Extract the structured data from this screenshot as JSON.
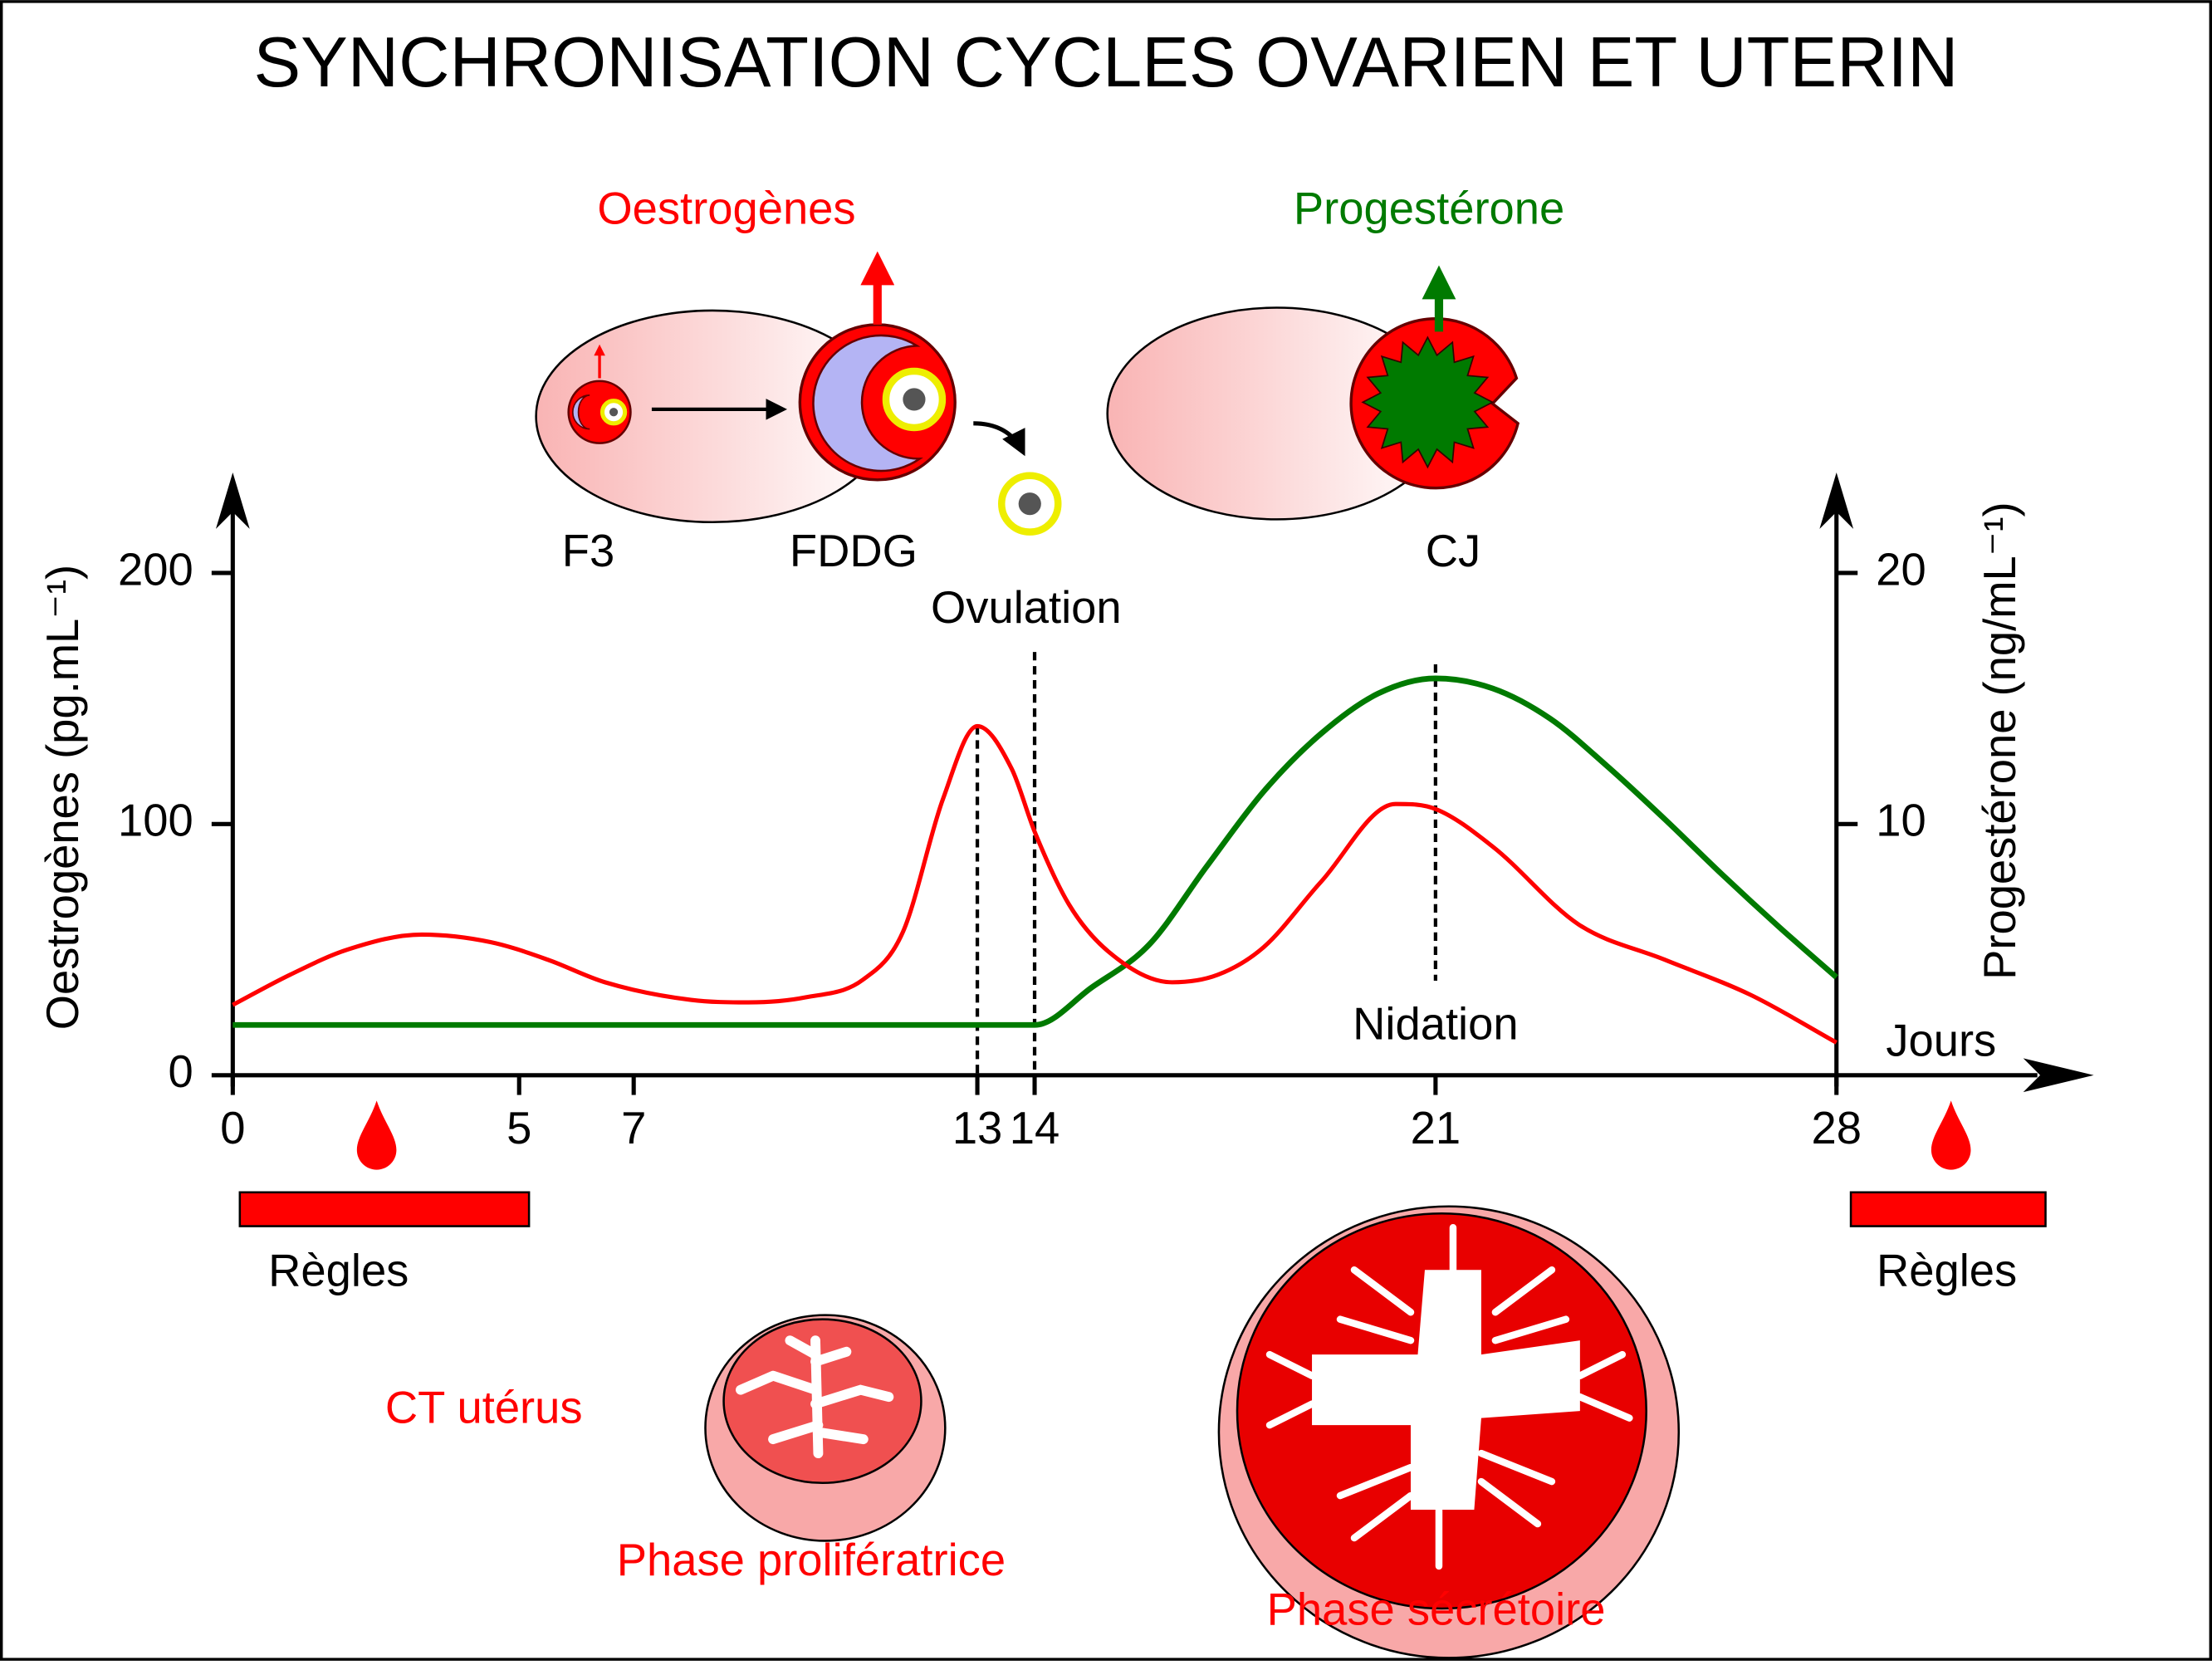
{
  "chart_data": {
    "type": "line",
    "title": "SYNCHRONISATION CYCLES OVARIEN ET UTERIN",
    "x_label": "Jours",
    "y_label": "Oestrogènes (pg.mL⁻¹)",
    "y2_label": "Progestérone (ng/mL⁻¹)",
    "xlim": [
      0,
      32
    ],
    "xticks": [
      0,
      5,
      7,
      13,
      14,
      21,
      28
    ],
    "ylim": [
      0,
      240
    ],
    "yticks": [
      0,
      100,
      200
    ],
    "y2lim": [
      0,
      24
    ],
    "y2ticks": [
      10,
      20
    ],
    "markers": [
      13,
      14,
      21
    ],
    "annotations": {
      "ovulation": "Ovulation",
      "nidation": "Nidation"
    },
    "series": [
      {
        "name": "Oestrogènes",
        "color": "#ff0000",
        "x": [
          0,
          1,
          2,
          3.3,
          4.5,
          5.5,
          6.5,
          8,
          9,
          10,
          11,
          11.7,
          12.4,
          13,
          13.6,
          14,
          14.6,
          15.3,
          16.4,
          17.2,
          18,
          19,
          20.3,
          21,
          22,
          23.5,
          25,
          26.5,
          28
        ],
        "values": [
          28,
          40,
          50,
          56,
          53,
          46,
          37,
          30,
          29,
          31,
          38,
          57,
          110,
          139,
          122,
          97,
          68,
          49,
          37,
          40,
          51,
          77,
          108,
          106,
          91,
          60,
          46,
          32,
          13
        ]
      },
      {
        "name": "Progestérone",
        "color": "#007a00",
        "axis": "y2",
        "x": [
          0,
          7,
          14,
          15,
          16,
          17,
          18,
          19,
          20,
          21,
          22,
          23,
          24,
          25,
          26,
          27,
          28
        ],
        "values": [
          2,
          2,
          2,
          3.5,
          5.2,
          8.3,
          11.3,
          13.6,
          15.2,
          15.8,
          15.4,
          14.2,
          12.3,
          10.2,
          8,
          5.9,
          3.9
        ]
      }
    ]
  },
  "illustrations": {
    "f3": "F3",
    "fddg": "FDDG",
    "cj": "CJ",
    "regles_start": "Règles",
    "regles_end": "Règles",
    "ct_uterus": "CT utérus",
    "phase_proliferative": "Phase prolifératrice",
    "phase_secretoire": "Phase sécrétoire"
  }
}
